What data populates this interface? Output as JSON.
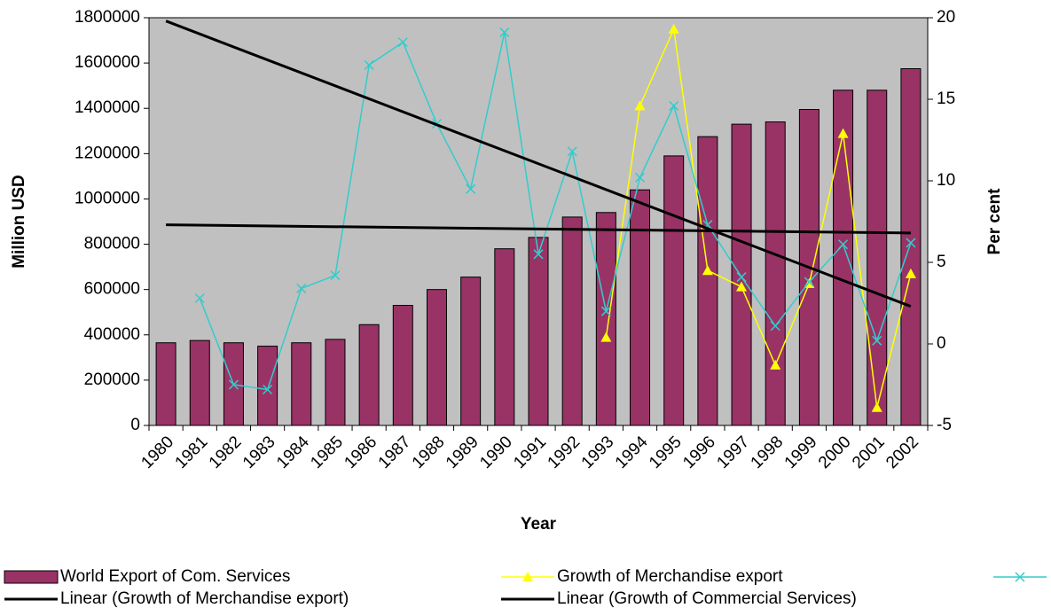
{
  "chart_data": {
    "type": "bar-line",
    "xlabel": "Year",
    "ylabel": "Million USD",
    "y2label": "Per cent",
    "categories": [
      "1980",
      "1981",
      "1982",
      "1983",
      "1984",
      "1985",
      "1986",
      "1987",
      "1988",
      "1989",
      "1990",
      "1991",
      "1992",
      "1993",
      "1994",
      "1995",
      "1996",
      "1997",
      "1998",
      "1999",
      "2000",
      "2001",
      "2002"
    ],
    "series": [
      {
        "name": "World Export of Com. Services",
        "type": "bar",
        "color": "#993366",
        "values": [
          365000,
          375000,
          365000,
          350000,
          365000,
          380000,
          445000,
          530000,
          600000,
          655000,
          780000,
          830000,
          920000,
          940000,
          1040000,
          1190000,
          1275000,
          1330000,
          1340000,
          1395000,
          1480000,
          1480000,
          1575000
        ]
      },
      {
        "name": "Growth of Merchandise export",
        "type": "line",
        "marker": "triangle",
        "axis": "y2",
        "color": "#ffff00",
        "values": [
          null,
          null,
          null,
          null,
          null,
          null,
          null,
          null,
          null,
          null,
          null,
          null,
          null,
          0.4,
          14.6,
          19.3,
          4.5,
          3.5,
          -1.3,
          3.7,
          12.9,
          -3.9,
          4.3
        ]
      },
      {
        "type": "line",
        "marker": "x",
        "axis": "y2",
        "color": "#33cccc",
        "values": [
          null,
          2.8,
          -2.5,
          -2.8,
          3.4,
          4.2,
          17.1,
          18.5,
          13.5,
          9.5,
          19.1,
          5.5,
          11.8,
          2.0,
          10.2,
          14.6,
          7.3,
          4.1,
          1.1,
          3.8,
          6.1,
          0.2,
          6.2
        ]
      }
    ],
    "trendlines": [
      {
        "name": "Linear (Growth of Merchandise export)",
        "axis": "y2",
        "color": "#000000",
        "values": [
          19.8,
          2.3
        ]
      },
      {
        "name": "Linear (Growth of Commercial Services)",
        "axis": "y2",
        "color": "#000000",
        "values": [
          7.3,
          6.8
        ]
      }
    ],
    "ylim": [
      0,
      1800000
    ],
    "yticks": [
      0,
      200000,
      400000,
      600000,
      800000,
      1000000,
      1200000,
      1400000,
      1600000,
      1800000
    ],
    "y2lim": [
      -5,
      20
    ],
    "y2ticks": [
      -5,
      0,
      5,
      10,
      15,
      20
    ],
    "plot_background": "#c0c0c0"
  }
}
